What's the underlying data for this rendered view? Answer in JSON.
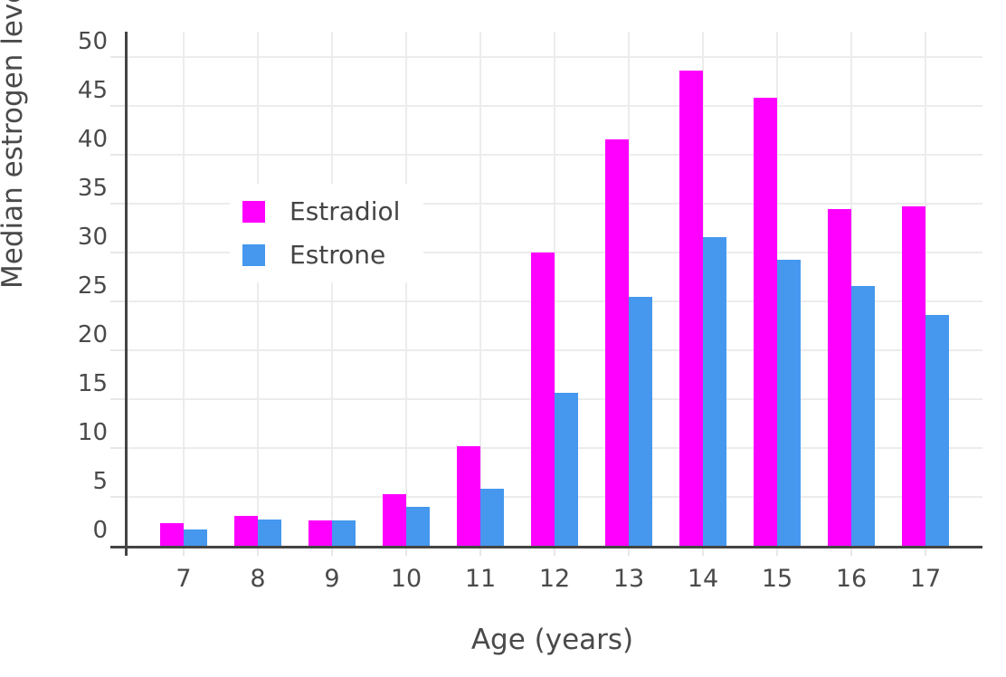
{
  "chart_data": {
    "type": "bar",
    "title": "",
    "xlabel": "Age (years)",
    "ylabel": "Median estrogen levels (pg/mL)",
    "categories": [
      "7",
      "8",
      "9",
      "10",
      "11",
      "12",
      "13",
      "14",
      "15",
      "16",
      "17"
    ],
    "series": [
      {
        "name": "Estradiol",
        "color": "#ff00ff",
        "values": [
          2.3,
          3.1,
          2.6,
          5.3,
          10.2,
          30.0,
          41.6,
          48.6,
          45.8,
          34.5,
          34.7
        ]
      },
      {
        "name": "Estrone",
        "color": "#4598ee",
        "values": [
          1.7,
          2.7,
          2.6,
          4.0,
          5.8,
          15.7,
          25.5,
          31.6,
          29.3,
          26.6,
          23.6
        ]
      }
    ],
    "ylim": [
      0,
      52.6
    ],
    "yticks": [
      0,
      5,
      10,
      15,
      20,
      25,
      30,
      35,
      40,
      45,
      50
    ],
    "grid": true,
    "legend_position": "inside-top-left",
    "bar_orientation": "vertical"
  },
  "style_colors": {
    "axis_line": "#444444",
    "gridline": "#ececec",
    "tick_text": "#4a4a4a"
  }
}
